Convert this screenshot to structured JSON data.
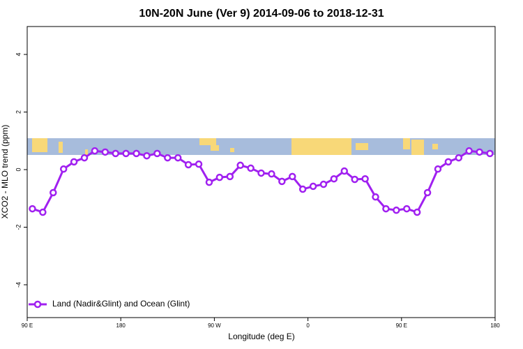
{
  "chart_data": {
    "type": "line",
    "title": "10N-20N June (Ver 9)   2014-09-06 to 2018-12-31",
    "xlabel": "Longitude (deg E)",
    "ylabel": "XCO2 - MLO trend (ppm)",
    "x": [
      95,
      105,
      115,
      125,
      135,
      145,
      155,
      165,
      175,
      185,
      195,
      205,
      215,
      225,
      235,
      245,
      255,
      265,
      275,
      285,
      295,
      305,
      315,
      325,
      335,
      345,
      355,
      365,
      375,
      385,
      395,
      405,
      415,
      425,
      435,
      445,
      455,
      465,
      475,
      485,
      495,
      505,
      515,
      525,
      535
    ],
    "series": [
      {
        "name": "Land (Nadir&Glint) and Ocean (Glint)",
        "color": "#a020f0",
        "values": [
          -1.36,
          -1.48,
          -0.8,
          0.02,
          0.27,
          0.41,
          0.65,
          0.61,
          0.56,
          0.56,
          0.56,
          0.48,
          0.56,
          0.41,
          0.41,
          0.17,
          0.19,
          -0.44,
          -0.27,
          -0.24,
          0.15,
          0.05,
          -0.12,
          -0.15,
          -0.41,
          -0.24,
          -0.68,
          -0.58,
          -0.51,
          -0.32,
          -0.05,
          -0.34,
          -0.32,
          -0.95,
          -1.36,
          -1.41,
          -1.36,
          -1.48,
          -0.8,
          0.02,
          0.27,
          0.41,
          0.65,
          0.61,
          0.56
        ]
      }
    ],
    "xlim": [
      90,
      540
    ],
    "xticks": [
      {
        "value": 90,
        "label": "90 E"
      },
      180,
      {
        "value": 270,
        "label": "90 W"
      },
      {
        "value": 360,
        "label": "0"
      },
      {
        "value": 450,
        "label": "90 E"
      },
      {
        "value": 540,
        "label": "180"
      }
    ],
    "ylim": [
      -5.14,
      4.97
    ],
    "yticks": [
      -4,
      -2,
      0,
      2,
      4
    ],
    "legend": "bottom-left"
  }
}
